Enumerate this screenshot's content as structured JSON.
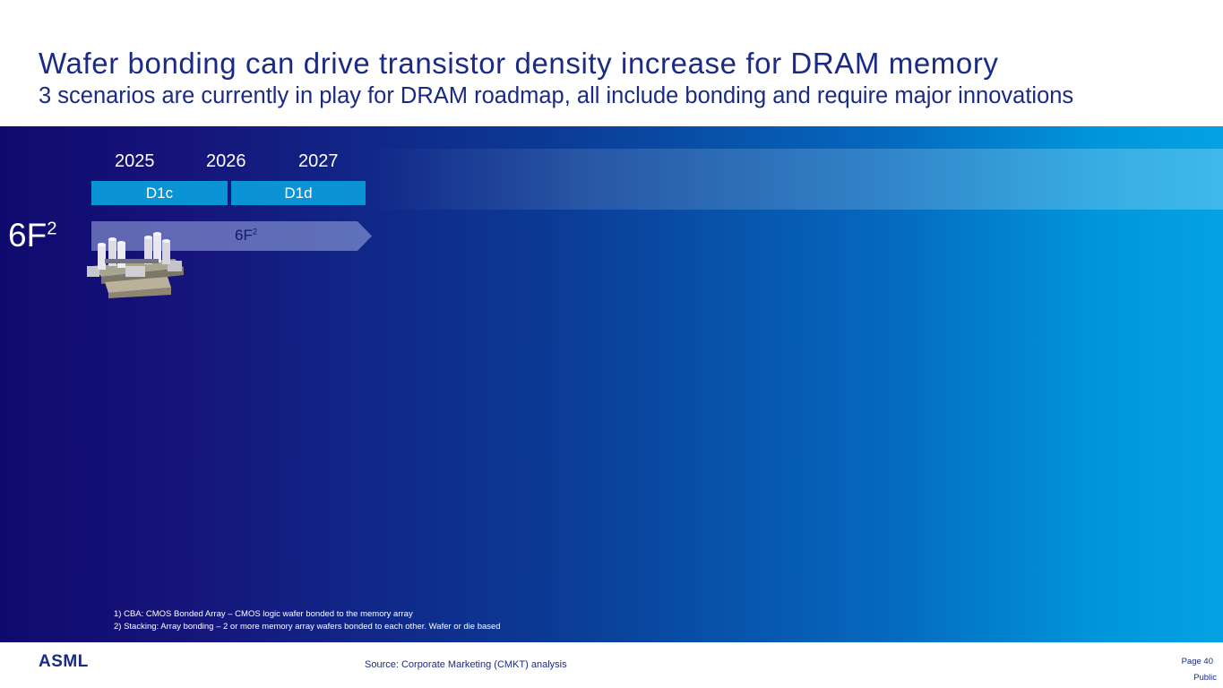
{
  "header": {
    "title": "Wafer bonding can drive transistor density increase for DRAM memory",
    "subtitle": "3 scenarios are currently in play for DRAM roadmap, all include bonding and require major innovations"
  },
  "timeline": {
    "years": [
      "2025",
      "2026",
      "2027"
    ],
    "nodes": [
      "D1c",
      "D1d"
    ]
  },
  "scenario": {
    "label_base": "6F",
    "label_exp": "2",
    "arrow_base": "6F",
    "arrow_exp": "2",
    "chip_icon": "dram-cell-3d-icon"
  },
  "footnotes": [
    "1) CBA: CMOS Bonded Array – CMOS logic wafer bonded to the memory array",
    "2) Stacking: Array bonding – 2 or more memory array wafers bonded to each other. Wafer or die based"
  ],
  "footer": {
    "logo": "ASML",
    "source": "Source: Corporate Marketing (CMKT) analysis",
    "page": "Page 40",
    "classification": "Public"
  },
  "colors": {
    "brand_navy": "#1a2a86",
    "node_blue": "#0a94d6",
    "panel_dark": "#0f0a6e",
    "panel_light": "#04a2e2"
  }
}
